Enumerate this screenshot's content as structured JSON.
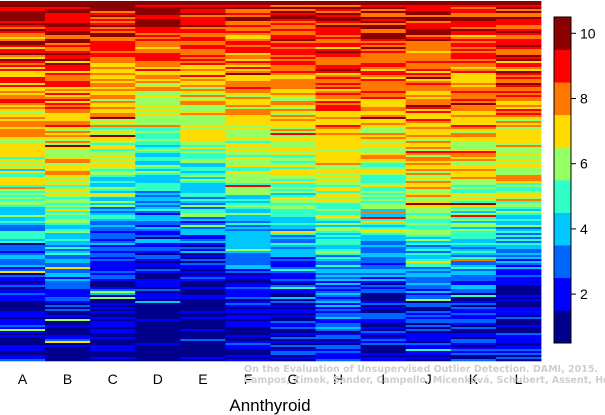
{
  "chart_data": {
    "type": "heatmap",
    "title": "",
    "xlabel": "Annthyroid",
    "ylabel": "",
    "columns": [
      "A",
      "B",
      "C",
      "D",
      "E",
      "F",
      "G",
      "H",
      "I",
      "J",
      "K",
      "L"
    ],
    "colorbar": {
      "range": [
        0.5,
        10.5
      ],
      "ticks": [
        "2",
        "4",
        "6",
        "8",
        "10"
      ],
      "tick_values": [
        2,
        4,
        6,
        8,
        10
      ],
      "levels": 10,
      "colors": [
        "#00008B",
        "#0000FF",
        "#0064FF",
        "#00C8FF",
        "#32FFC8",
        "#96FF64",
        "#FFDC00",
        "#FF7800",
        "#FF0000",
        "#8B0000"
      ]
    },
    "column_profiles": {
      "A": [
        9.6,
        6.0,
        1.2,
        1.5
      ],
      "B": [
        9.4,
        6.6,
        2.1,
        1.6
      ],
      "C": [
        9.7,
        5.2,
        1.0,
        1.3
      ],
      "D": [
        9.8,
        4.4,
        0.6,
        1.1
      ],
      "E": [
        9.7,
        4.7,
        0.9,
        1.2
      ],
      "F": [
        9.2,
        5.6,
        1.3,
        1.4
      ],
      "G": [
        9.3,
        5.8,
        1.2,
        1.5
      ],
      "H": [
        9.6,
        6.6,
        2.6,
        2.0
      ],
      "I": [
        9.5,
        6.2,
        1.6,
        1.7
      ],
      "J": [
        9.2,
        7.0,
        2.3,
        2.0
      ],
      "K": [
        9.0,
        6.8,
        1.9,
        1.8
      ],
      "L": [
        9.4,
        6.4,
        1.4,
        1.7
      ]
    },
    "watermark": [
      "On the Evaluation of Unsupervised Outlier Detection. DAMI, 2015.",
      "Campos, Zimek, Sander, Campello, Micenková, Schubert, Assent, Houle"
    ]
  }
}
